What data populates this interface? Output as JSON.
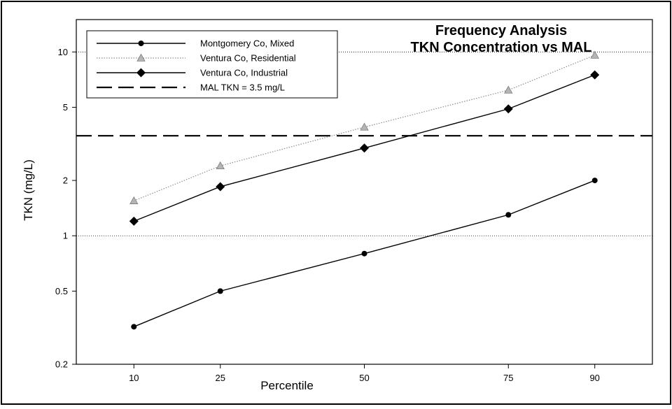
{
  "chart_data": {
    "type": "line",
    "title_lines": [
      "Frequency Analysis",
      "TKN Concentration vs MAL"
    ],
    "xlabel": "Percentile",
    "ylabel": "TKN (mg/L)",
    "x_scale": "linear",
    "y_scale": "log",
    "xlim": [
      0,
      100
    ],
    "ylim": [
      0.2,
      15
    ],
    "x_ticks": [
      10,
      25,
      50,
      75,
      90
    ],
    "y_ticks": [
      0.2,
      0.5,
      1,
      2,
      5,
      10
    ],
    "y_gridlines": [
      1,
      10
    ],
    "grid": "horizontal dotted at 1 and 10",
    "legend_position": "top-left",
    "series": [
      {
        "name": "Montgomery Co, Mixed",
        "marker": "circle",
        "line": "solid",
        "color": "#000000",
        "x": [
          10,
          25,
          50,
          75,
          90
        ],
        "y": [
          0.32,
          0.5,
          0.8,
          1.3,
          2.0
        ]
      },
      {
        "name": "Ventura Co, Residential",
        "marker": "triangle",
        "line": "dotted",
        "color": "#8c8c8c",
        "x": [
          10,
          25,
          50,
          75,
          90
        ],
        "y": [
          1.55,
          2.4,
          3.9,
          6.2,
          9.6
        ]
      },
      {
        "name": "Ventura Co, Industrial",
        "marker": "diamond",
        "line": "solid",
        "color": "#000000",
        "x": [
          10,
          25,
          50,
          75,
          90
        ],
        "y": [
          1.2,
          1.85,
          3.0,
          4.9,
          7.5
        ]
      }
    ],
    "reference_line": {
      "name": "MAL TKN = 3.5 mg/L",
      "y": 3.5,
      "line": "dashed",
      "color": "#000000"
    }
  }
}
